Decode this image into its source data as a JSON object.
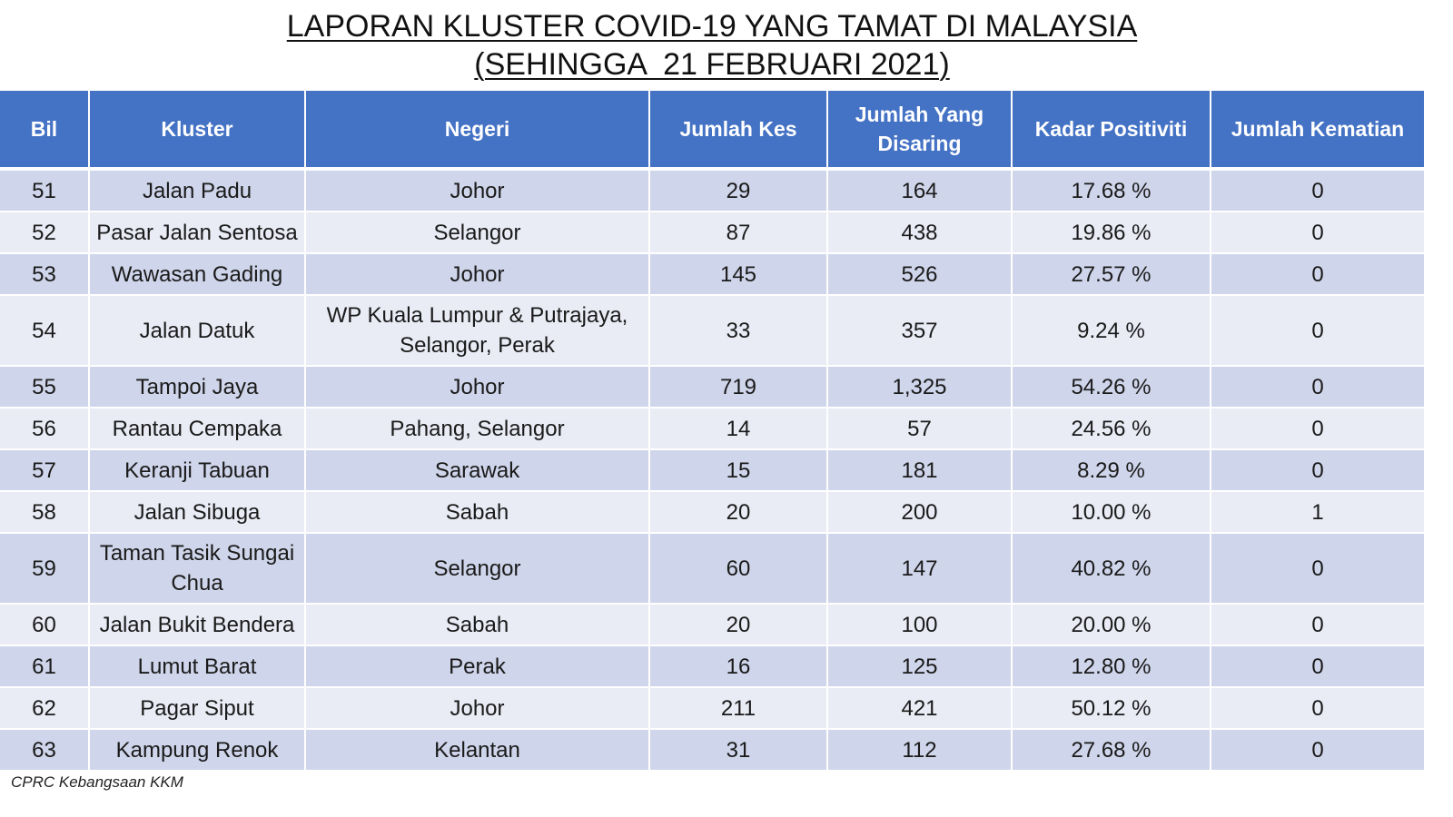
{
  "title": {
    "line1": "LAPORAN KLUSTER COVID-19 YANG TAMAT DI MALAYSIA",
    "line2": "(SEHINGGA  21 FEBRUARI 2021)"
  },
  "table": {
    "headers": {
      "bil": "Bil",
      "kluster": "Kluster",
      "negeri": "Negeri",
      "jumlah_kes": "Jumlah Kes",
      "jumlah_disaring": "Jumlah Yang Disaring",
      "kadar_positiviti": "Kadar Positiviti",
      "jumlah_kematian": "Jumlah Kematian"
    },
    "rows": [
      {
        "bil": "51",
        "kluster": "Jalan Padu",
        "negeri": "Johor",
        "kes": "29",
        "disaring": "164",
        "positiviti": "17.68 %",
        "kematian": "0"
      },
      {
        "bil": "52",
        "kluster": "Pasar Jalan Sentosa",
        "negeri": "Selangor",
        "kes": "87",
        "disaring": "438",
        "positiviti": "19.86 %",
        "kematian": "0"
      },
      {
        "bil": "53",
        "kluster": "Wawasan Gading",
        "negeri": "Johor",
        "kes": "145",
        "disaring": "526",
        "positiviti": "27.57 %",
        "kematian": "0"
      },
      {
        "bil": "54",
        "kluster": "Jalan Datuk",
        "negeri": "WP Kuala Lumpur & Putrajaya, Selangor, Perak",
        "kes": "33",
        "disaring": "357",
        "positiviti": "9.24 %",
        "kematian": "0"
      },
      {
        "bil": "55",
        "kluster": "Tampoi Jaya",
        "negeri": "Johor",
        "kes": "719",
        "disaring": "1,325",
        "positiviti": "54.26 %",
        "kematian": "0"
      },
      {
        "bil": "56",
        "kluster": "Rantau Cempaka",
        "negeri": "Pahang, Selangor",
        "kes": "14",
        "disaring": "57",
        "positiviti": "24.56 %",
        "kematian": "0"
      },
      {
        "bil": "57",
        "kluster": "Keranji Tabuan",
        "negeri": "Sarawak",
        "kes": "15",
        "disaring": "181",
        "positiviti": "8.29 %",
        "kematian": "0"
      },
      {
        "bil": "58",
        "kluster": "Jalan Sibuga",
        "negeri": "Sabah",
        "kes": "20",
        "disaring": "200",
        "positiviti": "10.00 %",
        "kematian": "1"
      },
      {
        "bil": "59",
        "kluster": "Taman Tasik Sungai Chua",
        "negeri": "Selangor",
        "kes": "60",
        "disaring": "147",
        "positiviti": "40.82 %",
        "kematian": "0"
      },
      {
        "bil": "60",
        "kluster": "Jalan Bukit Bendera",
        "negeri": "Sabah",
        "kes": "20",
        "disaring": "100",
        "positiviti": "20.00 %",
        "kematian": "0"
      },
      {
        "bil": "61",
        "kluster": "Lumut Barat",
        "negeri": "Perak",
        "kes": "16",
        "disaring": "125",
        "positiviti": "12.80 %",
        "kematian": "0"
      },
      {
        "bil": "62",
        "kluster": "Pagar Siput",
        "negeri": "Johor",
        "kes": "211",
        "disaring": "421",
        "positiviti": "50.12 %",
        "kematian": "0"
      },
      {
        "bil": "63",
        "kluster": "Kampung Renok",
        "negeri": "Kelantan",
        "kes": "31",
        "disaring": "112",
        "positiviti": "27.68 %",
        "kematian": "0"
      }
    ]
  },
  "footer": "CPRC Kebangsaan KKM",
  "colors": {
    "header_bg": "#4472C4",
    "row_odd_bg": "#CFD5EA",
    "row_even_bg": "#E9EBF5"
  }
}
